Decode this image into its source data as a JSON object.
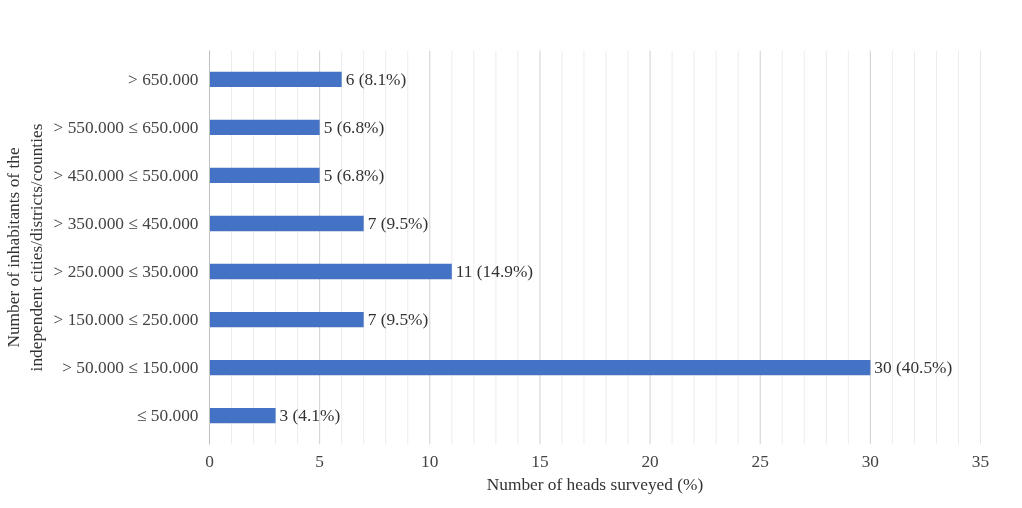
{
  "chart_data": {
    "type": "bar",
    "orientation": "horizontal",
    "xlabel": "Number of heads surveyed (%)",
    "ylabel": "Number of inhabitants of the\nindependent cities/districts/counties",
    "categories": [
      "> 650.000",
      "> 550.000 ≤ 650.000",
      "> 450.000 ≤ 550.000",
      "> 350.000 ≤ 450.000",
      "> 250.000 ≤ 350.000",
      "> 150.000 ≤ 250.000",
      "> 50.000 ≤ 150.000",
      "≤ 50.000"
    ],
    "values": [
      6,
      5,
      5,
      7,
      11,
      7,
      30,
      3
    ],
    "value_labels": [
      "6 (8.1%)",
      "5 (6.8%)",
      "5 (6.8%)",
      "7 (9.5%)",
      "11 (14.9%)",
      "7 (9.5%)",
      "30 (40.5%)",
      "3 (4.1%)"
    ],
    "color": "#4472c4",
    "xlim": [
      0,
      35
    ],
    "xticks": [
      0,
      {
        "value": 1,
        "label": null
      },
      {
        "value": 2,
        "label": null
      },
      {
        "value": 3,
        "label": null
      },
      {
        "value": 4,
        "label": null
      },
      5,
      {
        "value": 6,
        "label": null
      },
      {
        "value": 7,
        "label": null
      },
      {
        "value": 8,
        "label": null
      },
      {
        "value": 9,
        "label": null
      },
      10,
      {
        "value": 11,
        "label": null
      },
      {
        "value": 12,
        "label": null
      },
      {
        "value": 13,
        "label": null
      },
      {
        "value": 14,
        "label": null
      },
      15,
      {
        "value": 16,
        "label": null
      },
      {
        "value": 17,
        "label": null
      },
      {
        "value": 18,
        "label": null
      },
      {
        "value": 19,
        "label": null
      },
      20,
      {
        "value": 21,
        "label": null
      },
      {
        "value": 22,
        "label": null
      },
      {
        "value": 23,
        "label": null
      },
      {
        "value": 24,
        "label": null
      },
      25,
      {
        "value": 26,
        "label": null
      },
      {
        "value": 27,
        "label": null
      },
      {
        "value": 28,
        "label": null
      },
      {
        "value": 29,
        "label": null
      },
      30,
      {
        "value": 31,
        "label": null
      },
      {
        "value": 32,
        "label": null
      },
      {
        "value": 33,
        "label": null
      },
      {
        "value": 34,
        "label": null
      },
      35
    ],
    "grid": "x"
  }
}
